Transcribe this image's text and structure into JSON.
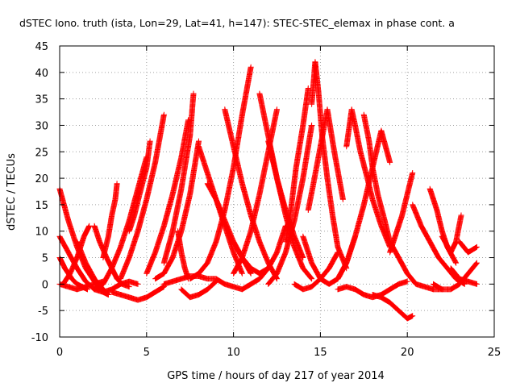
{
  "chart_data": {
    "type": "scatter",
    "title": "dSTEC Iono. truth (ista, Lon=29, Lat=41, h=147): STEC-STEC_elemax in phase cont. a",
    "xlabel": "GPS time / hours of day 217 of year 2014",
    "ylabel": "dSTEC  / TECUs",
    "xlim": [
      0,
      25
    ],
    "ylim": [
      -10,
      45
    ],
    "xticks": [
      0,
      5,
      10,
      15,
      20,
      25
    ],
    "yticks": [
      -10,
      -5,
      0,
      5,
      10,
      15,
      20,
      25,
      30,
      35,
      40,
      45
    ],
    "grid": true,
    "marker": "plus",
    "color": "#ff0000",
    "series": [
      {
        "x": [
          0.0,
          0.5,
          1.0,
          1.5,
          2.0,
          2.5,
          2.8
        ],
        "y": [
          18,
          12,
          7,
          3,
          0.5,
          -1.5,
          -2
        ]
      },
      {
        "x": [
          0.0,
          0.5,
          1.0,
          1.5,
          2.0,
          2.5,
          3.0,
          3.5,
          4.0,
          4.5
        ],
        "y": [
          9,
          6,
          3,
          0.5,
          -1,
          -1.5,
          -1,
          0,
          0.5,
          0
        ]
      },
      {
        "x": [
          0.0,
          0.3,
          0.7,
          1.0,
          1.3,
          1.6
        ],
        "y": [
          5,
          3,
          1,
          0,
          -0.5,
          -1
        ]
      },
      {
        "x": [
          0.0,
          0.5,
          1.0,
          1.5,
          2.0,
          2.5
        ],
        "y": [
          0,
          -0.5,
          -1,
          -0.5,
          0,
          0.5
        ]
      },
      {
        "x": [
          0.2,
          0.6,
          1.0,
          1.4,
          1.7
        ],
        "y": [
          0,
          2,
          5,
          9,
          11
        ]
      },
      {
        "x": [
          1.0,
          1.5,
          2.0,
          2.5,
          2.8
        ],
        "y": [
          8,
          4,
          1,
          -1,
          -2
        ]
      },
      {
        "x": [
          2.0,
          2.3,
          2.7,
          3.0,
          3.3,
          3.6,
          4.0
        ],
        "y": [
          11,
          8,
          5,
          3,
          1,
          0,
          -0.5
        ]
      },
      {
        "x": [
          2.0,
          2.5,
          3.0,
          3.5,
          4.0,
          4.5,
          5.0
        ],
        "y": [
          -1,
          0,
          3,
          7,
          12,
          18,
          24
        ]
      },
      {
        "x": [
          2.5,
          2.8,
          3.0,
          3.2,
          3.3
        ],
        "y": [
          5,
          9,
          13,
          16,
          19
        ]
      },
      {
        "x": [
          3.0,
          3.5,
          4.0,
          4.5,
          5.0,
          5.5,
          6.0
        ],
        "y": [
          -1.5,
          -2,
          -2.5,
          -3,
          -2.5,
          -1.5,
          -0.5
        ]
      },
      {
        "x": [
          3.5,
          4.0,
          4.5,
          5.0,
          5.5,
          6.0
        ],
        "y": [
          1,
          5,
          10,
          16,
          23,
          32
        ]
      },
      {
        "x": [
          4.0,
          4.3,
          4.6,
          5.0,
          5.2
        ],
        "y": [
          10,
          13,
          17,
          22,
          27
        ]
      },
      {
        "x": [
          5.0,
          5.5,
          6.0,
          6.5,
          7.0,
          7.4
        ],
        "y": [
          2,
          6,
          11,
          17,
          24,
          31
        ]
      },
      {
        "x": [
          5.5,
          6.0,
          6.5,
          7.0,
          7.5,
          8.0
        ],
        "y": [
          1,
          2,
          5,
          10,
          17,
          27
        ]
      },
      {
        "x": [
          6.0,
          6.5,
          7.0,
          7.5,
          7.7
        ],
        "y": [
          4,
          10,
          18,
          28,
          36
        ]
      },
      {
        "x": [
          6.0,
          6.5,
          7.0,
          7.5,
          8.0,
          8.5,
          9.0
        ],
        "y": [
          0,
          0.5,
          1,
          1.5,
          1.5,
          1,
          1
        ]
      },
      {
        "x": [
          6.8,
          7.0,
          7.2,
          7.4
        ],
        "y": [
          10,
          6,
          3,
          1
        ]
      },
      {
        "x": [
          7.0,
          7.5,
          8.0,
          8.5,
          9.0
        ],
        "y": [
          -1,
          -2.5,
          -2,
          -1,
          0.5
        ]
      },
      {
        "x": [
          7.5,
          8.0,
          8.5,
          9.0,
          9.5,
          10.0,
          10.5,
          11.0
        ],
        "y": [
          1,
          2,
          4,
          8,
          14,
          22,
          32,
          41
        ]
      },
      {
        "x": [
          8.0,
          8.5,
          9.0,
          9.5,
          10.0,
          10.5
        ],
        "y": [
          26,
          21,
          16,
          11,
          6,
          2
        ]
      },
      {
        "x": [
          8.5,
          9.0,
          9.5,
          10.0,
          10.5,
          11.0
        ],
        "y": [
          19,
          16,
          12,
          8,
          5,
          2
        ]
      },
      {
        "x": [
          9.0,
          9.5,
          10.0,
          10.5,
          11.0,
          11.5,
          12.0
        ],
        "y": [
          1,
          0,
          -0.5,
          -1,
          0,
          1,
          3
        ]
      },
      {
        "x": [
          9.5,
          10.0,
          10.5,
          11.0,
          11.5,
          12.0,
          12.5
        ],
        "y": [
          33,
          26,
          19,
          13,
          8,
          4,
          1
        ]
      },
      {
        "x": [
          10.0,
          10.5,
          11.0,
          11.5,
          12.0,
          12.5,
          13.0
        ],
        "y": [
          8,
          5,
          3,
          2,
          3,
          6,
          11
        ]
      },
      {
        "x": [
          10.0,
          10.5,
          11.0,
          11.5,
          12.0,
          12.5
        ],
        "y": [
          2,
          5,
          10,
          17,
          25,
          33
        ]
      },
      {
        "x": [
          11.5,
          12.0,
          12.5,
          13.0,
          13.5,
          14.0,
          14.5
        ],
        "y": [
          36,
          28,
          20,
          13,
          7,
          3,
          1
        ]
      },
      {
        "x": [
          12.0,
          12.5,
          13.0,
          13.5,
          14.0
        ],
        "y": [
          27,
          20,
          14,
          9,
          5
        ]
      },
      {
        "x": [
          12.0,
          12.5,
          13.0,
          13.5,
          14.0,
          14.5
        ],
        "y": [
          0,
          2,
          6,
          12,
          20,
          30
        ]
      },
      {
        "x": [
          13.0,
          13.3,
          13.6,
          14.0,
          14.3
        ],
        "y": [
          8,
          14,
          22,
          30,
          37
        ]
      },
      {
        "x": [
          13.5,
          14.0,
          14.5,
          15.0,
          15.5,
          16.0
        ],
        "y": [
          0,
          -1,
          -0.5,
          1,
          3,
          6
        ]
      },
      {
        "x": [
          14.0,
          14.5,
          15.0,
          15.5,
          16.0,
          16.5,
          17.0
        ],
        "y": [
          9,
          4,
          1,
          0,
          1,
          4,
          9
        ]
      },
      {
        "x": [
          14.5,
          14.7,
          14.9,
          15.1,
          15.4,
          15.7,
          16.0,
          16.5
        ],
        "y": [
          34,
          42,
          36,
          28,
          20,
          13,
          7,
          3
        ]
      },
      {
        "x": [
          14.3,
          14.6,
          15.0,
          15.4,
          15.8,
          16.3
        ],
        "y": [
          14,
          19,
          26,
          33,
          25,
          16
        ]
      },
      {
        "x": [
          16.0,
          16.5,
          17.0,
          17.5,
          18.0,
          18.5,
          19.0
        ],
        "y": [
          1,
          4,
          9,
          15,
          22,
          29,
          23
        ]
      },
      {
        "x": [
          16.5,
          16.8,
          17.0,
          17.3,
          17.7,
          18.0,
          18.5,
          19.0
        ],
        "y": [
          26,
          33,
          30,
          25,
          20,
          16,
          11,
          7
        ]
      },
      {
        "x": [
          17.5,
          17.8,
          18.0,
          18.3,
          18.7,
          19.0
        ],
        "y": [
          32,
          27,
          22,
          17,
          12,
          8
        ]
      },
      {
        "x": [
          16.0,
          16.5,
          17.0,
          17.5,
          18.0,
          18.5,
          19.0,
          19.5,
          20.0
        ],
        "y": [
          -1,
          -0.5,
          -1,
          -2,
          -2.5,
          -2,
          -1,
          0,
          0.5
        ]
      },
      {
        "x": [
          18.0,
          18.5,
          19.0,
          19.5,
          20.0,
          20.3
        ],
        "y": [
          -2,
          -2.5,
          -3.5,
          -5,
          -6.5,
          -6
        ]
      },
      {
        "x": [
          19.0,
          19.3,
          19.7,
          20.0,
          20.3
        ],
        "y": [
          6,
          9,
          13,
          17,
          21
        ]
      },
      {
        "x": [
          19.0,
          19.5,
          20.0,
          20.5,
          21.0,
          21.5,
          22.0
        ],
        "y": [
          8,
          5,
          2,
          0,
          -0.5,
          -1,
          -1
        ]
      },
      {
        "x": [
          20.3,
          20.8,
          21.3,
          21.8,
          22.3,
          22.8,
          23.3
        ],
        "y": [
          15,
          11,
          8,
          5,
          3,
          1,
          0
        ]
      },
      {
        "x": [
          21.3,
          21.7,
          22.0,
          22.3,
          22.8
        ],
        "y": [
          18,
          14,
          10,
          7,
          4
        ]
      },
      {
        "x": [
          21.5,
          22.0,
          22.5,
          23.0,
          23.5,
          24.0
        ],
        "y": [
          0,
          -1,
          -1,
          0,
          2,
          4
        ]
      },
      {
        "x": [
          22.0,
          22.5,
          22.8,
          23.1
        ],
        "y": [
          9,
          6,
          8,
          13
        ]
      },
      {
        "x": [
          23.0,
          23.5,
          24.0
        ],
        "y": [
          8,
          6,
          7
        ]
      },
      {
        "x": [
          22.5,
          23.0,
          23.5,
          24.0
        ],
        "y": [
          3,
          1,
          0.5,
          0
        ]
      }
    ]
  }
}
